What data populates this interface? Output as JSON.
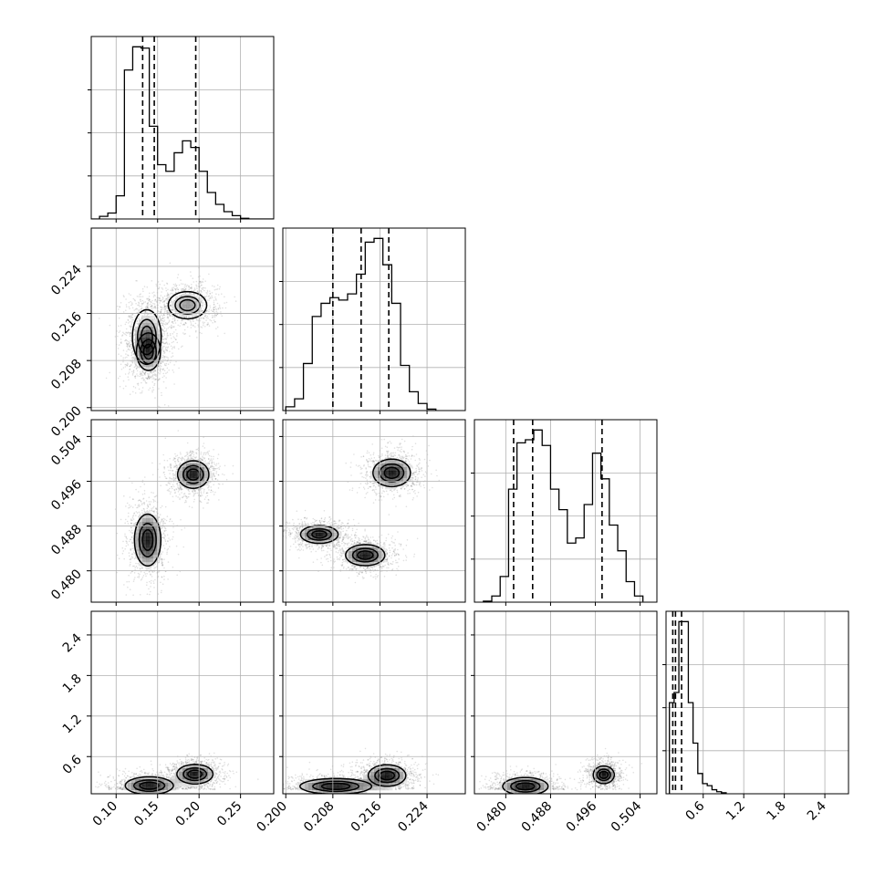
{
  "chart_data": {
    "type": "corner",
    "parameters": [
      {
        "range": [
          0.07,
          0.29
        ],
        "ticks": [
          0.1,
          0.15,
          0.2,
          0.25
        ],
        "tick_labels": [
          "0.10",
          "0.15",
          "0.20",
          "0.25"
        ]
      },
      {
        "range": [
          0.1995,
          0.2305
        ],
        "ticks": [
          0.2,
          0.208,
          0.216,
          0.224
        ],
        "tick_labels": [
          "0.200",
          "0.208",
          "0.216",
          "0.224"
        ]
      },
      {
        "range": [
          0.4744,
          0.507
        ],
        "ticks": [
          0.48,
          0.488,
          0.496,
          0.504
        ],
        "tick_labels": [
          "0.480",
          "0.488",
          "0.496",
          "0.504"
        ]
      },
      {
        "range": [
          0.05,
          2.75
        ],
        "ticks": [
          0.6,
          1.2,
          1.8,
          2.4
        ],
        "tick_labels": [
          "0.6",
          "1.2",
          "1.8",
          "2.4"
        ]
      }
    ],
    "histograms": [
      {
        "param": 0,
        "bins": [
          0.07,
          0.08,
          0.09,
          0.1,
          0.11,
          0.12,
          0.13,
          0.14,
          0.15,
          0.16,
          0.17,
          0.18,
          0.19,
          0.2,
          0.21,
          0.22,
          0.23,
          0.24,
          0.25,
          0.26,
          0.27,
          0.28,
          0.29
        ],
        "counts": [
          0,
          4,
          9,
          35,
          225,
          260,
          258,
          140,
          82,
          72,
          100,
          118,
          108,
          72,
          40,
          22,
          11,
          5,
          1,
          0,
          0,
          0
        ],
        "quantiles": [
          0.132,
          0.146,
          0.196
        ]
      },
      {
        "param": 1,
        "bins": [
          0.2,
          0.2015,
          0.203,
          0.2045,
          0.206,
          0.2075,
          0.209,
          0.2105,
          0.212,
          0.2135,
          0.215,
          0.2165,
          0.218,
          0.2195,
          0.221,
          0.2225,
          0.224,
          0.2255
        ],
        "counts": [
          8,
          25,
          100,
          200,
          228,
          240,
          235,
          248,
          290,
          358,
          366,
          310,
          228,
          96,
          40,
          15,
          3
        ],
        "quantiles": [
          0.208,
          0.2128,
          0.2175
        ]
      },
      {
        "param": 2,
        "bins": [
          0.476,
          0.4775,
          0.479,
          0.4805,
          0.482,
          0.4835,
          0.485,
          0.4865,
          0.488,
          0.4895,
          0.491,
          0.4925,
          0.494,
          0.4955,
          0.497,
          0.4985,
          0.5,
          0.5015,
          0.503,
          0.5045
        ],
        "counts": [
          2,
          12,
          50,
          220,
          310,
          316,
          335,
          305,
          220,
          180,
          115,
          125,
          190,
          290,
          240,
          150,
          100,
          40,
          12,
          1
        ],
        "quantiles": [
          0.4814,
          0.4848,
          0.4972
        ]
      },
      {
        "param": 3,
        "bins": [
          0.1,
          0.17,
          0.24,
          0.31,
          0.38,
          0.45,
          0.52,
          0.59,
          0.66,
          0.73,
          0.8,
          0.87,
          0.94
        ],
        "counts": [
          90,
          100,
          170,
          170,
          90,
          50,
          20,
          10,
          8,
          4,
          2,
          1
        ],
        "quantiles": [
          0.15,
          0.19,
          0.28
        ]
      }
    ],
    "densities": [
      {
        "x": 0,
        "y": 1,
        "blobs": [
          {
            "cx": 0.137,
            "cy": 0.212,
            "sx": 0.012,
            "sy": 0.0032,
            "rot": -5
          },
          {
            "cx": 0.139,
            "cy": 0.2095,
            "sx": 0.01,
            "sy": 0.0022,
            "rot": 0
          },
          {
            "cx": 0.186,
            "cy": 0.2174,
            "sx": 0.016,
            "sy": 0.0016,
            "rot": 0
          }
        ]
      },
      {
        "x": 0,
        "y": 2,
        "blobs": [
          {
            "cx": 0.138,
            "cy": 0.4855,
            "sx": 0.011,
            "sy": 0.0032,
            "rot": -25
          },
          {
            "cx": 0.193,
            "cy": 0.4972,
            "sx": 0.013,
            "sy": 0.0017,
            "rot": 0
          }
        ]
      },
      {
        "x": 1,
        "y": 2,
        "blobs": [
          {
            "cx": 0.2057,
            "cy": 0.4865,
            "sx": 0.0022,
            "sy": 0.0011,
            "rot": -30
          },
          {
            "cx": 0.2135,
            "cy": 0.4828,
            "sx": 0.0023,
            "sy": 0.0013,
            "rot": -25
          },
          {
            "cx": 0.218,
            "cy": 0.4975,
            "sx": 0.0022,
            "sy": 0.0017,
            "rot": -45
          }
        ]
      },
      {
        "x": 0,
        "y": 3,
        "blobs": [
          {
            "cx": 0.14,
            "cy": 0.17,
            "sx": 0.02,
            "sy": 0.09,
            "rot": 0
          },
          {
            "cx": 0.195,
            "cy": 0.34,
            "sx": 0.015,
            "sy": 0.1,
            "rot": 0
          }
        ]
      },
      {
        "x": 1,
        "y": 3,
        "blobs": [
          {
            "cx": 0.2085,
            "cy": 0.16,
            "sx": 0.0042,
            "sy": 0.08,
            "rot": 0
          },
          {
            "cx": 0.2172,
            "cy": 0.32,
            "sx": 0.0022,
            "sy": 0.11,
            "rot": 0
          }
        ]
      },
      {
        "x": 2,
        "y": 3,
        "blobs": [
          {
            "cx": 0.4835,
            "cy": 0.16,
            "sx": 0.0028,
            "sy": 0.09,
            "rot": 0
          },
          {
            "cx": 0.4975,
            "cy": 0.33,
            "sx": 0.0013,
            "sy": 0.09,
            "rot": 0
          }
        ]
      }
    ]
  }
}
